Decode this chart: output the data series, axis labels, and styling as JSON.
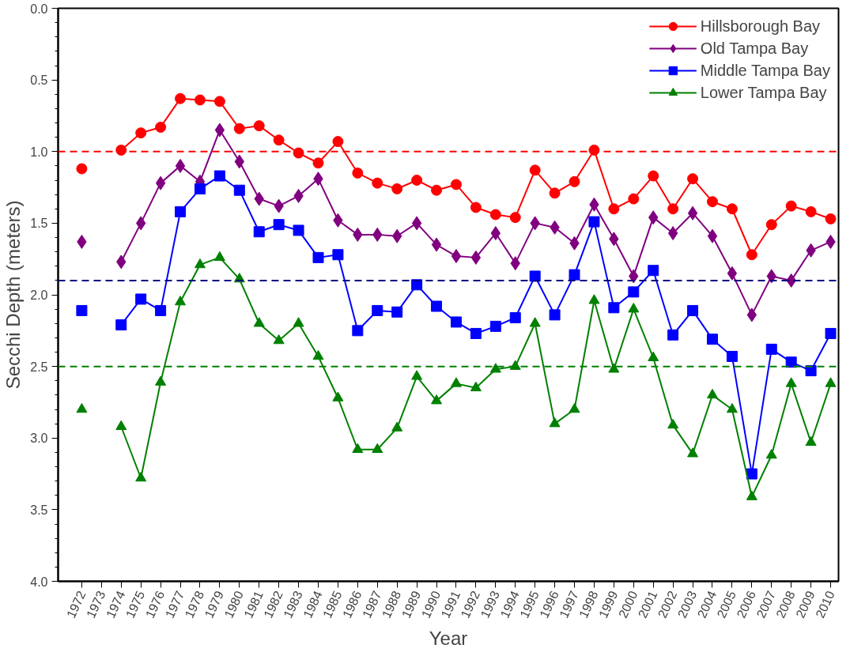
{
  "chart_data": {
    "type": "line",
    "xlabel": "Year",
    "ylabel": "Secchi Depth (meters)",
    "categories": [
      "1972",
      "1973",
      "1974",
      "1975",
      "1976",
      "1977",
      "1978",
      "1979",
      "1980",
      "1981",
      "1982",
      "1983",
      "1984",
      "1985",
      "1986",
      "1987",
      "1988",
      "1989",
      "1990",
      "1991",
      "1992",
      "1993",
      "1994",
      "1995",
      "1996",
      "1997",
      "1998",
      "1999",
      "2000",
      "2001",
      "2002",
      "2003",
      "2004",
      "2005",
      "2006",
      "2007",
      "2008",
      "2009",
      "2010"
    ],
    "series": [
      {
        "name": "Hillsborough Bay",
        "color": "#ff0000",
        "marker": "circle",
        "values": [
          1.12,
          null,
          0.99,
          0.87,
          0.83,
          0.63,
          0.64,
          0.65,
          0.84,
          0.82,
          0.92,
          1.01,
          1.08,
          0.93,
          1.15,
          1.22,
          1.26,
          1.2,
          1.27,
          1.23,
          1.39,
          1.44,
          1.46,
          1.13,
          1.29,
          1.21,
          0.99,
          1.4,
          1.33,
          1.17,
          1.4,
          1.19,
          1.35,
          1.4,
          1.72,
          1.51,
          1.38,
          1.42,
          1.47
        ]
      },
      {
        "name": "Old Tampa Bay",
        "color": "#800080",
        "marker": "diamond",
        "values": [
          1.63,
          null,
          1.77,
          1.5,
          1.22,
          1.1,
          1.21,
          0.85,
          1.07,
          1.33,
          1.38,
          1.31,
          1.19,
          1.48,
          1.58,
          1.58,
          1.59,
          1.5,
          1.65,
          1.73,
          1.74,
          1.57,
          1.78,
          1.5,
          1.53,
          1.64,
          1.37,
          1.61,
          1.87,
          1.46,
          1.57,
          1.43,
          1.59,
          1.85,
          2.14,
          1.87,
          1.9,
          1.69,
          1.63
        ]
      },
      {
        "name": "Middle Tampa Bay",
        "color": "#0000ff",
        "marker": "square",
        "values": [
          2.11,
          null,
          2.21,
          2.03,
          2.11,
          1.42,
          1.26,
          1.17,
          1.27,
          1.56,
          1.51,
          1.55,
          1.74,
          1.72,
          2.25,
          2.11,
          2.12,
          1.93,
          2.08,
          2.19,
          2.27,
          2.22,
          2.16,
          1.87,
          2.14,
          1.86,
          1.49,
          2.09,
          1.98,
          1.83,
          2.28,
          2.11,
          2.31,
          2.43,
          3.25,
          2.38,
          2.47,
          2.53,
          2.27
        ]
      },
      {
        "name": "Lower Tampa Bay",
        "color": "#008000",
        "marker": "triangle",
        "values": [
          2.8,
          null,
          2.92,
          3.28,
          2.61,
          2.05,
          1.79,
          1.74,
          1.89,
          2.2,
          2.32,
          2.2,
          2.43,
          2.72,
          3.08,
          3.08,
          2.93,
          2.57,
          2.74,
          2.62,
          2.65,
          2.52,
          2.5,
          2.2,
          2.9,
          2.8,
          2.04,
          2.52,
          2.1,
          2.44,
          2.91,
          3.11,
          2.7,
          2.8,
          3.41,
          3.12,
          2.62,
          3.03,
          2.62
        ]
      }
    ],
    "ylim": [
      4,
      0
    ],
    "yticks": [
      {
        "value": 0,
        "label": "0.0"
      },
      0.5,
      {
        "value": 1,
        "label": "1.0"
      },
      1.5,
      {
        "value": 2,
        "label": "2.0"
      },
      2.5,
      {
        "value": 3,
        "label": "3.0"
      },
      3.5,
      {
        "value": 4,
        "label": "4.0"
      }
    ],
    "ref_lines": [
      {
        "axis": "y",
        "value": 1.0,
        "color": "#ff0000",
        "line_style": "dashed"
      },
      {
        "axis": "y",
        "value": 1.9,
        "color": "#000080",
        "line_style": "dashed"
      },
      {
        "axis": "y",
        "value": 2.5,
        "color": "#008000",
        "line_style": "dashed"
      }
    ],
    "grid": false,
    "legend": "top right"
  }
}
